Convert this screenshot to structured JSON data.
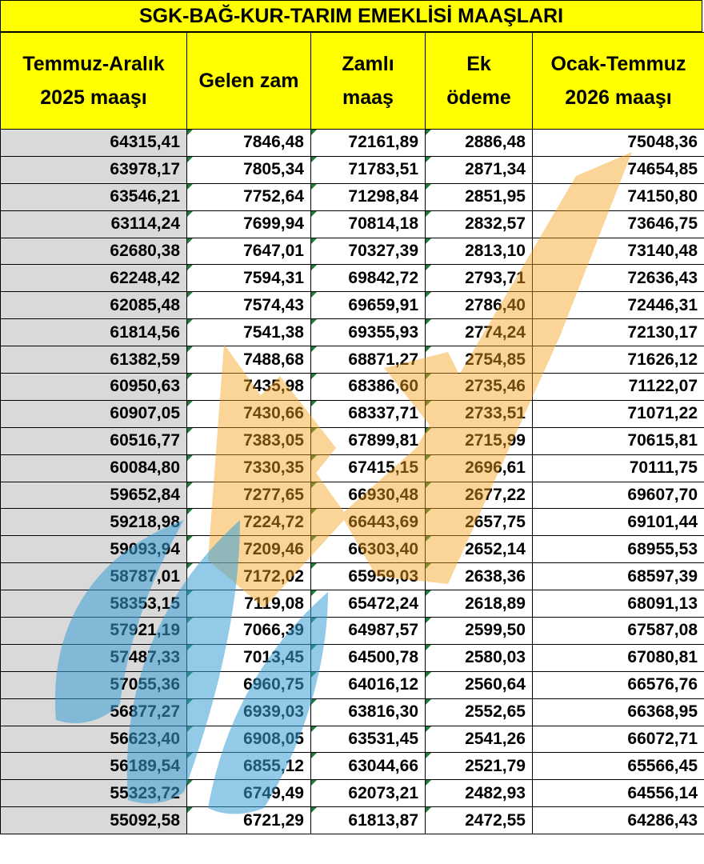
{
  "title": "SGK-BAĞ-KUR-TARIM EMEKLİSİ MAAŞLARI",
  "columns": [
    "Temmuz-Aralık\n2025 maaşı",
    "Gelen zam",
    "Zamlı\nmaaş",
    "Ek\nödeme",
    "Ocak-Temmuz\n2026 maaşı"
  ],
  "rows": [
    [
      "64315,41",
      "7846,48",
      "72161,89",
      "2886,48",
      "75048,36"
    ],
    [
      "63978,17",
      "7805,34",
      "71783,51",
      "2871,34",
      "74654,85"
    ],
    [
      "63546,21",
      "7752,64",
      "71298,84",
      "2851,95",
      "74150,80"
    ],
    [
      "63114,24",
      "7699,94",
      "70814,18",
      "2832,57",
      "73646,75"
    ],
    [
      "62680,38",
      "7647,01",
      "70327,39",
      "2813,10",
      "73140,48"
    ],
    [
      "62248,42",
      "7594,31",
      "69842,72",
      "2793,71",
      "72636,43"
    ],
    [
      "62085,48",
      "7574,43",
      "69659,91",
      "2786,40",
      "72446,31"
    ],
    [
      "61814,56",
      "7541,38",
      "69355,93",
      "2774,24",
      "72130,17"
    ],
    [
      "61382,59",
      "7488,68",
      "68871,27",
      "2754,85",
      "71626,12"
    ],
    [
      "60950,63",
      "7435,98",
      "68386,60",
      "2735,46",
      "71122,07"
    ],
    [
      "60907,05",
      "7430,66",
      "68337,71",
      "2733,51",
      "71071,22"
    ],
    [
      "60516,77",
      "7383,05",
      "67899,81",
      "2715,99",
      "70615,81"
    ],
    [
      "60084,80",
      "7330,35",
      "67415,15",
      "2696,61",
      "70111,75"
    ],
    [
      "59652,84",
      "7277,65",
      "66930,48",
      "2677,22",
      "69607,70"
    ],
    [
      "59218,98",
      "7224,72",
      "66443,69",
      "2657,75",
      "69101,44"
    ],
    [
      "59093,94",
      "7209,46",
      "66303,40",
      "2652,14",
      "68955,53"
    ],
    [
      "58787,01",
      "7172,02",
      "65959,03",
      "2638,36",
      "68597,39"
    ],
    [
      "58353,15",
      "7119,08",
      "65472,24",
      "2618,89",
      "68091,13"
    ],
    [
      "57921,19",
      "7066,39",
      "64987,57",
      "2599,50",
      "67587,08"
    ],
    [
      "57487,33",
      "7013,45",
      "64500,78",
      "2580,03",
      "67080,81"
    ],
    [
      "57055,36",
      "6960,75",
      "64016,12",
      "2560,64",
      "66576,76"
    ],
    [
      "56877,27",
      "6939,03",
      "63816,30",
      "2552,65",
      "66368,95"
    ],
    [
      "56623,40",
      "6908,05",
      "63531,45",
      "2541,26",
      "66072,71"
    ],
    [
      "56189,54",
      "6855,12",
      "63044,66",
      "2521,79",
      "65566,45"
    ],
    [
      "55323,72",
      "6749,49",
      "62073,21",
      "2482,93",
      "64556,14"
    ],
    [
      "55092,58",
      "6721,29",
      "61813,87",
      "2472,55",
      "64286,43"
    ]
  ],
  "colors": {
    "header_bg": "#ffff00",
    "first_col_bg": "#d9d9d9",
    "watermark_blue": "#3a9fd6",
    "watermark_orange": "#f7a21b"
  },
  "watermark_icon": "logo-watermark-icon"
}
